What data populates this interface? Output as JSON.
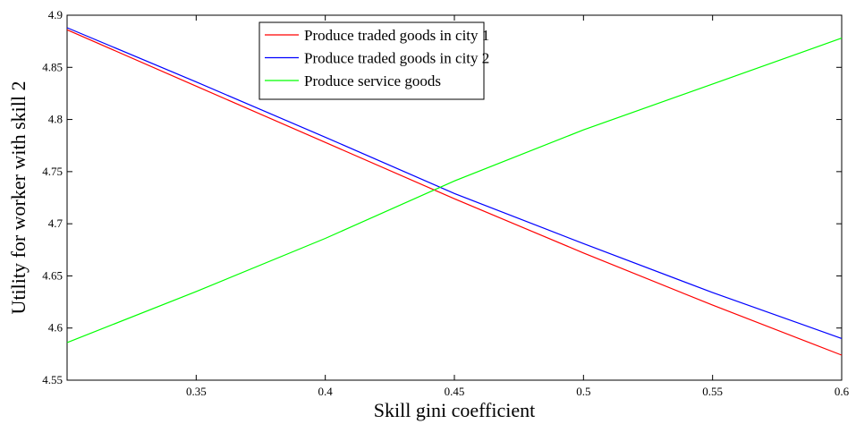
{
  "chart_data": {
    "type": "line",
    "xlabel": "Skill gini coefficient",
    "ylabel": "Utility for worker with skill 2",
    "xlim": [
      0.3,
      0.6
    ],
    "ylim": [
      4.55,
      4.9
    ],
    "xticks": [
      0.35,
      0.4,
      0.45,
      0.5,
      0.55,
      0.6
    ],
    "xtick_labels": [
      "0.35",
      "0.4",
      "0.45",
      "0.5",
      "0.55",
      "0.6"
    ],
    "yticks": [
      4.55,
      4.6,
      4.65,
      4.7,
      4.75,
      4.8,
      4.85,
      4.9
    ],
    "ytick_labels": [
      "4.55",
      "4.6",
      "4.65",
      "4.7",
      "4.75",
      "4.8",
      "4.85",
      "4.9"
    ],
    "grid": false,
    "legend_position": "top-center",
    "series": [
      {
        "name": "Produce traded goods in city 1",
        "color": "#ff0000",
        "x": [
          0.3,
          0.35,
          0.4,
          0.45,
          0.5,
          0.55,
          0.6
        ],
        "y": [
          4.886,
          4.832,
          4.778,
          4.724,
          4.672,
          4.622,
          4.574
        ]
      },
      {
        "name": "Produce traded goods in city 2",
        "color": "#0000ff",
        "x": [
          0.3,
          0.35,
          0.4,
          0.45,
          0.5,
          0.55,
          0.6
        ],
        "y": [
          4.888,
          4.836,
          4.783,
          4.729,
          4.681,
          4.634,
          4.59
        ]
      },
      {
        "name": "Produce service goods",
        "color": "#00ff00",
        "x": [
          0.3,
          0.35,
          0.4,
          0.45,
          0.5,
          0.55,
          0.6
        ],
        "y": [
          4.586,
          4.635,
          4.686,
          4.741,
          4.79,
          4.834,
          4.878
        ]
      }
    ]
  }
}
